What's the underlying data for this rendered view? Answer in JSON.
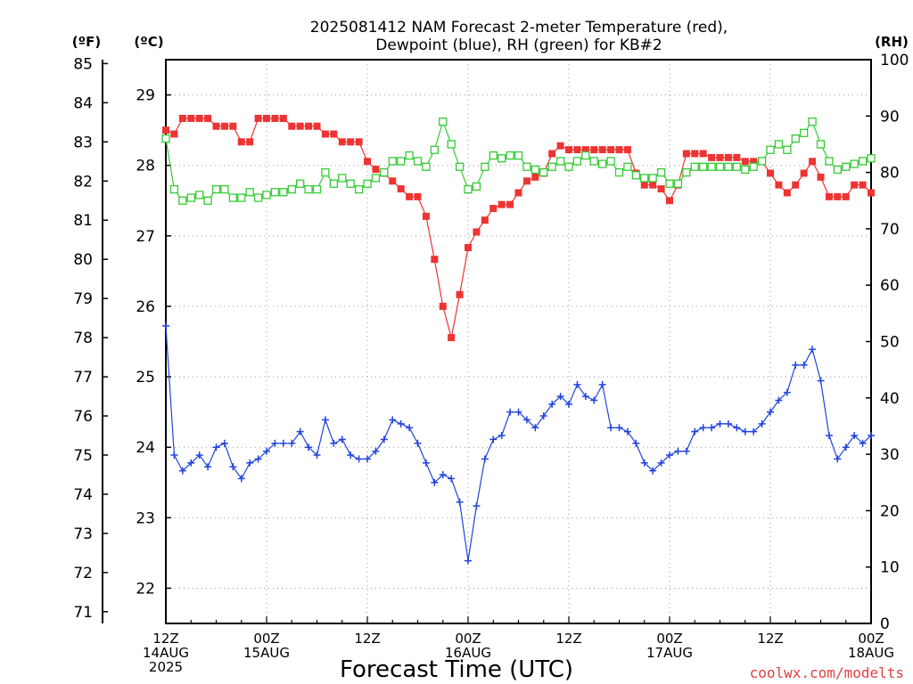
{
  "chart_data": {
    "type": "line",
    "title_line1": "2025081412 NAM Forecast 2-meter Temperature (red),",
    "title_line2": "Dewpoint (blue), RH (green) for KB#2",
    "xlabel": "Forecast Time (UTC)",
    "axis_units": {
      "left_f": "(ºF)",
      "left_c": "(ºC)",
      "right": "(RH)"
    },
    "credit": "coolwx.com/modelts",
    "x_ticks": [
      {
        "h": 0,
        "line1": "12Z",
        "line2": "14AUG",
        "line3": "2025"
      },
      {
        "h": 12,
        "line1": "00Z",
        "line2": "15AUG",
        "line3": ""
      },
      {
        "h": 24,
        "line1": "12Z",
        "line2": "",
        "line3": ""
      },
      {
        "h": 36,
        "line1": "00Z",
        "line2": "16AUG",
        "line3": ""
      },
      {
        "h": 48,
        "line1": "12Z",
        "line2": "",
        "line3": ""
      },
      {
        "h": 60,
        "line1": "00Z",
        "line2": "17AUG",
        "line3": ""
      },
      {
        "h": 72,
        "line1": "12Z",
        "line2": "",
        "line3": ""
      },
      {
        "h": 84,
        "line1": "00Z",
        "line2": "18AUG",
        "line3": ""
      }
    ],
    "x_range_hours": [
      0,
      84
    ],
    "f_ticks": [
      71,
      72,
      73,
      74,
      75,
      76,
      77,
      78,
      79,
      80,
      81,
      82,
      83,
      84,
      85
    ],
    "c_ticks": [
      22,
      23,
      24,
      25,
      26,
      27,
      28,
      29
    ],
    "rh_ticks": [
      0,
      10,
      20,
      30,
      40,
      50,
      60,
      70,
      80,
      90,
      100
    ],
    "c_range": [
      21.5,
      29.5
    ],
    "rh_range": [
      0,
      100
    ],
    "grid": true,
    "series": [
      {
        "name": "Temperature",
        "unit": "F",
        "color": "#ee3333",
        "marker": "filled-square",
        "values": [
          83.3,
          83.2,
          83.6,
          83.6,
          83.6,
          83.6,
          83.4,
          83.4,
          83.4,
          83.0,
          83.0,
          83.6,
          83.6,
          83.6,
          83.6,
          83.4,
          83.4,
          83.4,
          83.4,
          83.2,
          83.2,
          83.0,
          83.0,
          83.0,
          82.5,
          82.3,
          82.2,
          82.0,
          81.8,
          81.6,
          81.6,
          81.1,
          80.0,
          78.8,
          78.0,
          79.1,
          80.3,
          80.7,
          81.0,
          81.3,
          81.4,
          81.4,
          81.7,
          82.0,
          82.1,
          82.2,
          82.7,
          82.9,
          82.8,
          82.8,
          82.8,
          82.8,
          82.8,
          82.8,
          82.8,
          82.8,
          82.2,
          81.9,
          81.9,
          81.8,
          81.5,
          81.9,
          82.7,
          82.7,
          82.7,
          82.6,
          82.6,
          82.6,
          82.6,
          82.5,
          82.5,
          82.5,
          82.2,
          81.9,
          81.7,
          81.9,
          82.2,
          82.5,
          82.1,
          81.6,
          81.6,
          81.6,
          81.9,
          81.9,
          81.7
        ]
      },
      {
        "name": "Dewpoint",
        "unit": "F",
        "color": "#2244dd",
        "marker": "plus",
        "values": [
          78.3,
          75.0,
          74.6,
          74.8,
          75.0,
          74.7,
          75.2,
          75.3,
          74.7,
          74.4,
          74.8,
          74.9,
          75.1,
          75.3,
          75.3,
          75.3,
          75.6,
          75.2,
          75.0,
          75.9,
          75.3,
          75.4,
          75.0,
          74.9,
          74.9,
          75.1,
          75.4,
          75.9,
          75.8,
          75.7,
          75.3,
          74.8,
          74.3,
          74.5,
          74.4,
          73.8,
          72.3,
          73.7,
          74.9,
          75.4,
          75.5,
          76.1,
          76.1,
          75.9,
          75.7,
          76.0,
          76.3,
          76.5,
          76.3,
          76.8,
          76.5,
          76.4,
          76.8,
          75.7,
          75.7,
          75.6,
          75.3,
          74.8,
          74.6,
          74.8,
          75.0,
          75.1,
          75.1,
          75.6,
          75.7,
          75.7,
          75.8,
          75.8,
          75.7,
          75.6,
          75.6,
          75.8,
          76.1,
          76.4,
          76.6,
          77.3,
          77.3,
          77.7,
          76.9,
          75.5,
          74.9,
          75.2,
          75.5,
          75.3,
          75.5
        ]
      },
      {
        "name": "RH",
        "unit": "%",
        "color": "#33cc33",
        "marker": "open-square",
        "values": [
          86,
          77,
          75,
          75.5,
          76,
          75,
          77,
          77,
          75.5,
          75.5,
          76.5,
          75.5,
          76,
          76.5,
          76.5,
          77,
          78,
          77,
          77,
          80,
          78,
          79,
          78,
          77,
          78,
          79,
          80,
          82,
          82,
          83,
          82,
          81,
          84,
          89,
          85,
          81,
          77,
          77.5,
          81,
          83,
          82.5,
          83,
          83,
          81,
          80.5,
          80,
          81,
          82,
          81,
          82,
          83,
          82,
          81.5,
          82,
          80,
          81,
          79.5,
          79,
          79,
          80,
          78,
          78,
          80,
          81,
          81,
          81,
          81,
          81,
          81,
          80.5,
          81,
          82,
          84,
          85,
          84,
          86,
          87,
          89,
          85,
          82,
          80.5,
          81,
          81.5,
          82,
          82.5
        ]
      }
    ]
  }
}
